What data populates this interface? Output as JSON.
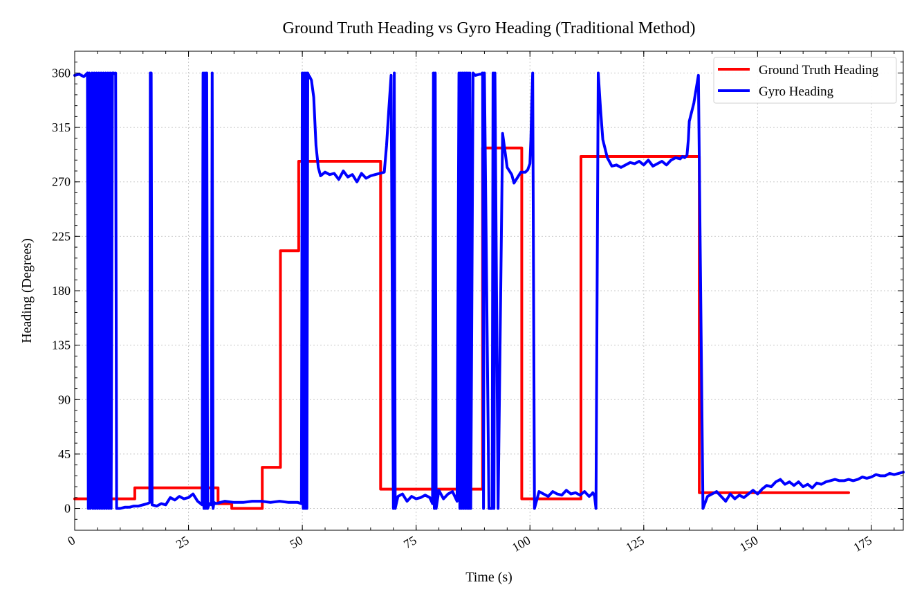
{
  "chart_data": {
    "type": "line",
    "title": "Ground Truth Heading vs Gyro Heading (Traditional Method)",
    "xlabel": "Time (s)",
    "ylabel": "Heading (Degrees)",
    "xlim": [
      0,
      182
    ],
    "ylim": [
      -18,
      378
    ],
    "xticks": [
      0,
      25,
      50,
      75,
      100,
      125,
      150,
      175
    ],
    "yticks": [
      0,
      45,
      90,
      135,
      180,
      225,
      270,
      315,
      360
    ],
    "grid": true,
    "legend_position": "top-right",
    "series": [
      {
        "name": "Ground Truth Heading",
        "color": "#ff0000",
        "x": [
          0,
          13.2,
          13.2,
          31.5,
          31.5,
          34.5,
          34.5,
          41.2,
          41.2,
          45.2,
          45.2,
          49.2,
          49.2,
          67.2,
          67.2,
          89.6,
          89.6,
          98.2,
          98.2,
          111.2,
          111.2,
          137.2,
          137.2,
          170
        ],
        "y": [
          8,
          8,
          17,
          17,
          4,
          4,
          0,
          0,
          34,
          34,
          213,
          213,
          287,
          287,
          16,
          16,
          298,
          298,
          8,
          8,
          291,
          291,
          13,
          13
        ]
      },
      {
        "name": "Gyro Heading",
        "color": "#0000ff",
        "x": [
          0,
          1,
          2,
          2.8,
          3,
          3.2,
          3.4,
          3.8,
          4,
          4.3,
          4.5,
          4.8,
          5,
          5.3,
          5.5,
          5.8,
          6,
          6.3,
          6.5,
          6.8,
          7,
          7.3,
          7.5,
          7.8,
          8,
          8.3,
          8.6,
          8.9,
          9,
          9.2,
          10,
          11,
          12,
          13,
          14,
          15,
          16,
          16.5,
          16.6,
          16.8,
          17,
          18,
          19,
          20,
          21,
          22,
          23,
          24,
          25,
          26,
          27,
          28,
          28.2,
          28.4,
          28.6,
          28.8,
          29,
          29.2,
          29.4,
          29.6,
          30,
          30.2,
          30.4,
          30.6,
          31,
          32,
          33,
          35,
          37,
          39,
          41,
          43,
          45,
          47,
          48,
          49,
          49.8,
          50.0,
          50.2,
          50.4,
          50.6,
          50.8,
          51,
          51.2,
          51.4,
          51.6,
          52,
          52.5,
          53,
          53.5,
          54,
          55,
          56,
          57,
          58,
          59,
          60,
          61,
          62,
          63,
          64,
          65,
          66,
          67,
          68,
          68.5,
          69,
          69.5,
          70,
          70.2,
          70.4,
          71,
          72,
          73,
          74,
          75,
          76,
          77,
          78,
          78.6,
          78.8,
          79,
          79.2,
          79.4,
          80,
          81,
          82,
          83,
          84,
          84.4,
          84.6,
          84.8,
          85,
          85.2,
          85.4,
          85.6,
          85.8,
          86,
          86.2,
          86.4,
          86.6,
          86.8,
          87,
          87.5,
          88,
          89,
          89.4,
          89.5,
          89.6,
          89.8,
          90,
          91,
          91.5,
          91.7,
          91.9,
          92.1,
          92.3,
          93,
          94,
          95,
          96,
          96.5,
          97,
          98,
          99,
          99.5,
          100,
          100.2,
          100.4,
          100.6,
          101,
          102,
          103,
          104,
          105,
          106,
          107,
          108,
          109,
          110,
          111,
          112,
          113,
          113.6,
          113.8,
          114,
          114.2,
          114.5,
          115,
          115.5,
          116,
          117,
          118,
          119,
          120,
          121,
          122,
          123,
          124,
          125,
          126,
          127,
          128,
          129,
          130,
          131,
          132,
          133,
          133.5,
          134,
          134.5,
          134.8,
          135,
          136,
          137,
          138,
          139,
          140,
          141,
          142,
          143,
          144,
          145,
          146,
          147,
          148,
          149,
          150,
          151,
          152,
          153,
          154,
          155,
          156,
          157,
          158,
          159,
          160,
          161,
          162,
          163,
          164,
          165,
          166,
          167,
          168,
          169,
          170,
          171,
          172,
          173,
          174,
          175,
          176,
          177,
          178,
          179,
          180,
          181,
          182
        ],
        "y": [
          358,
          359,
          357,
          360,
          0,
          360,
          0,
          360,
          0,
          360,
          0,
          360,
          0,
          360,
          0,
          360,
          0,
          360,
          0,
          360,
          0,
          360,
          0,
          360,
          0,
          360,
          360,
          359,
          360,
          0,
          0,
          1,
          1,
          2,
          2,
          3,
          4,
          5,
          360,
          360,
          3,
          2,
          4,
          3,
          9,
          7,
          10,
          8,
          9,
          12,
          6,
          3,
          360,
          0,
          360,
          0,
          360,
          0,
          2,
          4,
          3,
          360,
          0,
          5,
          4,
          5,
          6,
          5,
          5,
          6,
          6,
          5,
          6,
          5,
          5,
          5,
          4,
          360,
          0,
          360,
          0,
          360,
          0,
          360,
          358,
          357,
          354,
          340,
          300,
          282,
          275,
          278,
          276,
          277,
          272,
          279,
          274,
          276,
          270,
          277,
          273,
          275,
          276,
          277,
          278,
          300,
          330,
          358,
          0,
          360,
          0,
          10,
          12,
          6,
          10,
          8,
          9,
          11,
          9,
          4,
          360,
          0,
          360,
          0,
          15,
          8,
          12,
          14,
          6,
          360,
          0,
          360,
          0,
          360,
          0,
          360,
          0,
          360,
          0,
          360,
          0,
          360,
          0,
          360,
          358,
          359,
          359,
          360,
          360,
          0,
          360,
          0,
          0,
          0,
          360,
          0,
          360,
          0,
          310,
          282,
          276,
          269,
          272,
          278,
          278,
          280,
          285,
          305,
          335,
          360,
          0,
          14,
          12,
          10,
          14,
          12,
          11,
          15,
          12,
          13,
          11,
          14,
          10,
          12,
          13,
          12,
          10,
          0,
          360,
          330,
          305,
          290,
          283,
          284,
          282,
          284,
          286,
          285,
          287,
          284,
          288,
          283,
          285,
          287,
          284,
          288,
          290,
          289,
          291,
          290,
          292,
          305,
          320,
          335,
          358,
          0,
          10,
          12,
          14,
          10,
          6,
          12,
          8,
          11,
          9,
          12,
          15,
          12,
          16,
          19,
          18,
          22,
          24,
          20,
          22,
          19,
          22,
          18,
          20,
          17,
          21,
          20,
          22,
          23,
          24,
          23,
          23,
          24,
          23,
          24,
          26,
          25,
          26,
          28,
          27,
          27,
          29,
          28,
          29,
          30
        ]
      }
    ]
  }
}
